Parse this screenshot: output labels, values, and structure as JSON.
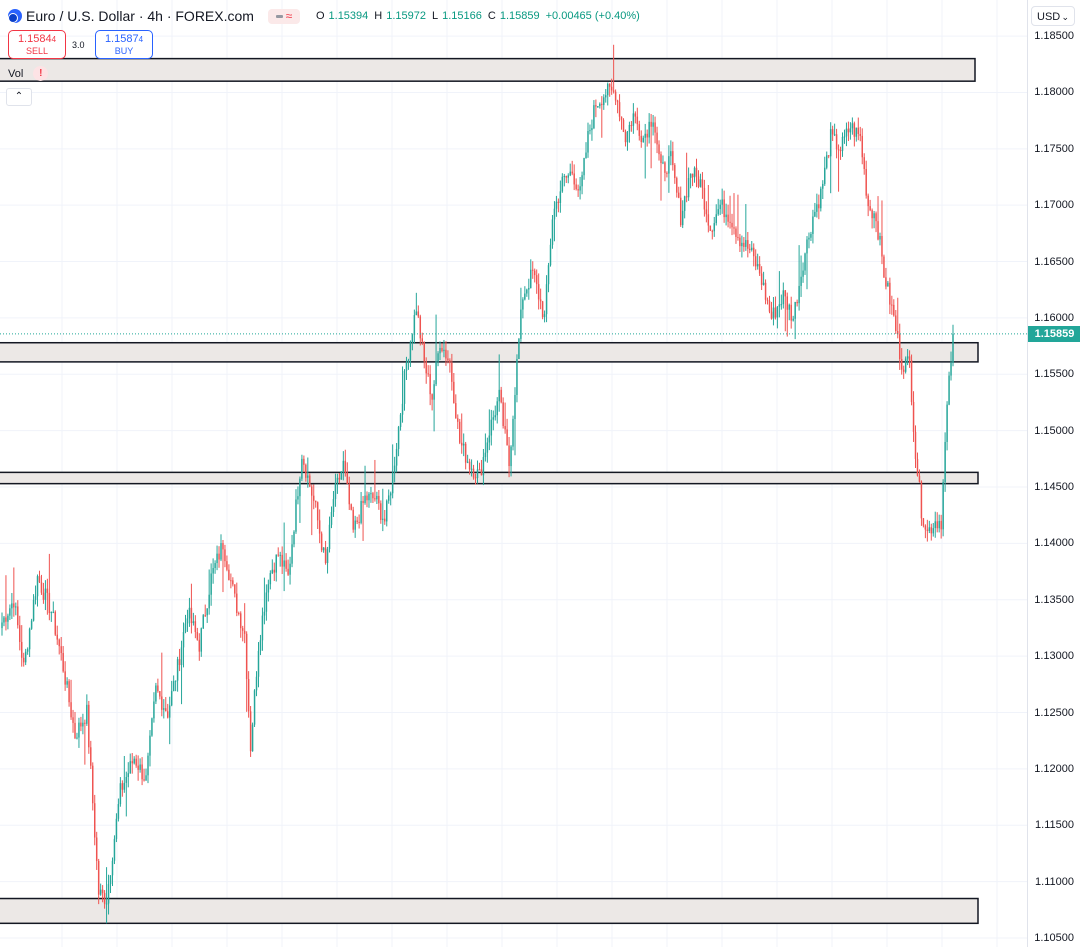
{
  "header": {
    "title": "Euro / U.S. Dollar · 4h · FOREX.com",
    "symbol_icon": "eurusd-flag-icon",
    "ohlc": {
      "o_label": "O",
      "o": "1.15394",
      "h_label": "H",
      "h": "1.15972",
      "l_label": "L",
      "l": "1.15166",
      "c_label": "C",
      "c": "1.15859",
      "change": "+0.00465 (+0.40%)"
    }
  },
  "trade": {
    "sell_price_main": "1.1584",
    "sell_price_pip": "4",
    "sell_label": "SELL",
    "spread": "3.0",
    "buy_price_main": "1.1587",
    "buy_price_pip": "4",
    "buy_label": "BUY"
  },
  "vol": {
    "label": "Vol",
    "warning_icon": "warning-icon"
  },
  "price_axis": {
    "currency": "USD",
    "last_price": "1.15859",
    "tick_labels": [
      "1.18500",
      "1.18000",
      "1.17500",
      "1.17000",
      "1.16500",
      "1.16000",
      "1.15500",
      "1.15000",
      "1.14500",
      "1.14000",
      "1.13500",
      "1.13000",
      "1.12500",
      "1.12000",
      "1.11500",
      "1.11000",
      "1.10500"
    ]
  },
  "colors": {
    "up": "#26a69a",
    "down": "#ef5350",
    "zone_fill": "#ece8e6",
    "zone_border": "#131722",
    "last_price": "#22a699"
  },
  "chart_data": {
    "type": "candlestick",
    "ylim": [
      1.1042,
      1.1882
    ],
    "grid": true,
    "last_price": 1.15859,
    "zones": [
      {
        "low": 1.181,
        "high": 1.183
      },
      {
        "low": 1.1561,
        "high": 1.1578
      },
      {
        "low": 1.1453,
        "high": 1.1463
      },
      {
        "low": 1.1063,
        "high": 1.1085
      }
    ],
    "path_keypoints": [
      [
        0,
        1.133
      ],
      [
        6,
        1.135
      ],
      [
        11,
        1.129
      ],
      [
        18,
        1.137
      ],
      [
        25,
        1.134
      ],
      [
        30,
        1.13
      ],
      [
        37,
        1.123
      ],
      [
        43,
        1.125
      ],
      [
        49,
        1.109
      ],
      [
        53,
        1.1085
      ],
      [
        60,
        1.118
      ],
      [
        67,
        1.121
      ],
      [
        73,
        1.119
      ],
      [
        78,
        1.127
      ],
      [
        84,
        1.125
      ],
      [
        89,
        1.129
      ],
      [
        94,
        1.134
      ],
      [
        100,
        1.131
      ],
      [
        106,
        1.137
      ],
      [
        112,
        1.14
      ],
      [
        118,
        1.135
      ],
      [
        123,
        1.132
      ],
      [
        126,
        1.122
      ],
      [
        130,
        1.131
      ],
      [
        135,
        1.137
      ],
      [
        140,
        1.139
      ],
      [
        145,
        1.137
      ],
      [
        152,
        1.148
      ],
      [
        159,
        1.143
      ],
      [
        164,
        1.138
      ],
      [
        168,
        1.144
      ],
      [
        173,
        1.147
      ],
      [
        178,
        1.141
      ],
      [
        184,
        1.144
      ],
      [
        189,
        1.144
      ],
      [
        194,
        1.142
      ],
      [
        198,
        1.146
      ],
      [
        205,
        1.156
      ],
      [
        210,
        1.161
      ],
      [
        214,
        1.156
      ],
      [
        218,
        1.153
      ],
      [
        222,
        1.158
      ],
      [
        227,
        1.156
      ],
      [
        232,
        1.149
      ],
      [
        237,
        1.147
      ],
      [
        242,
        1.146
      ],
      [
        247,
        1.15
      ],
      [
        252,
        1.153
      ],
      [
        257,
        1.147
      ],
      [
        261,
        1.156
      ],
      [
        264,
        1.162
      ],
      [
        269,
        1.164
      ],
      [
        275,
        1.16
      ],
      [
        279,
        1.169
      ],
      [
        284,
        1.172
      ],
      [
        289,
        1.173
      ],
      [
        293,
        1.171
      ],
      [
        297,
        1.176
      ],
      [
        301,
        1.179
      ],
      [
        306,
        1.18
      ],
      [
        311,
        1.18
      ],
      [
        316,
        1.176
      ],
      [
        320,
        1.178
      ],
      [
        325,
        1.176
      ],
      [
        330,
        1.178
      ],
      [
        334,
        1.173
      ],
      [
        339,
        1.174
      ],
      [
        344,
        1.169
      ],
      [
        349,
        1.173
      ],
      [
        354,
        1.172
      ],
      [
        359,
        1.168
      ],
      [
        364,
        1.17
      ],
      [
        369,
        1.169
      ],
      [
        374,
        1.167
      ],
      [
        379,
        1.166
      ],
      [
        384,
        1.164
      ],
      [
        390,
        1.16
      ],
      [
        396,
        1.162
      ],
      [
        401,
        1.16
      ],
      [
        406,
        1.165
      ],
      [
        411,
        1.169
      ],
      [
        415,
        1.171
      ],
      [
        420,
        1.176
      ],
      [
        425,
        1.175
      ],
      [
        430,
        1.177
      ],
      [
        435,
        1.176
      ],
      [
        439,
        1.17
      ],
      [
        443,
        1.169
      ],
      [
        447,
        1.164
      ],
      [
        452,
        1.16
      ],
      [
        456,
        1.156
      ],
      [
        460,
        1.156
      ],
      [
        463,
        1.148
      ],
      [
        466,
        1.143
      ],
      [
        469,
        1.141
      ],
      [
        473,
        1.142
      ],
      [
        476,
        1.142
      ],
      [
        479,
        1.152
      ],
      [
        482,
        1.1585
      ]
    ]
  }
}
